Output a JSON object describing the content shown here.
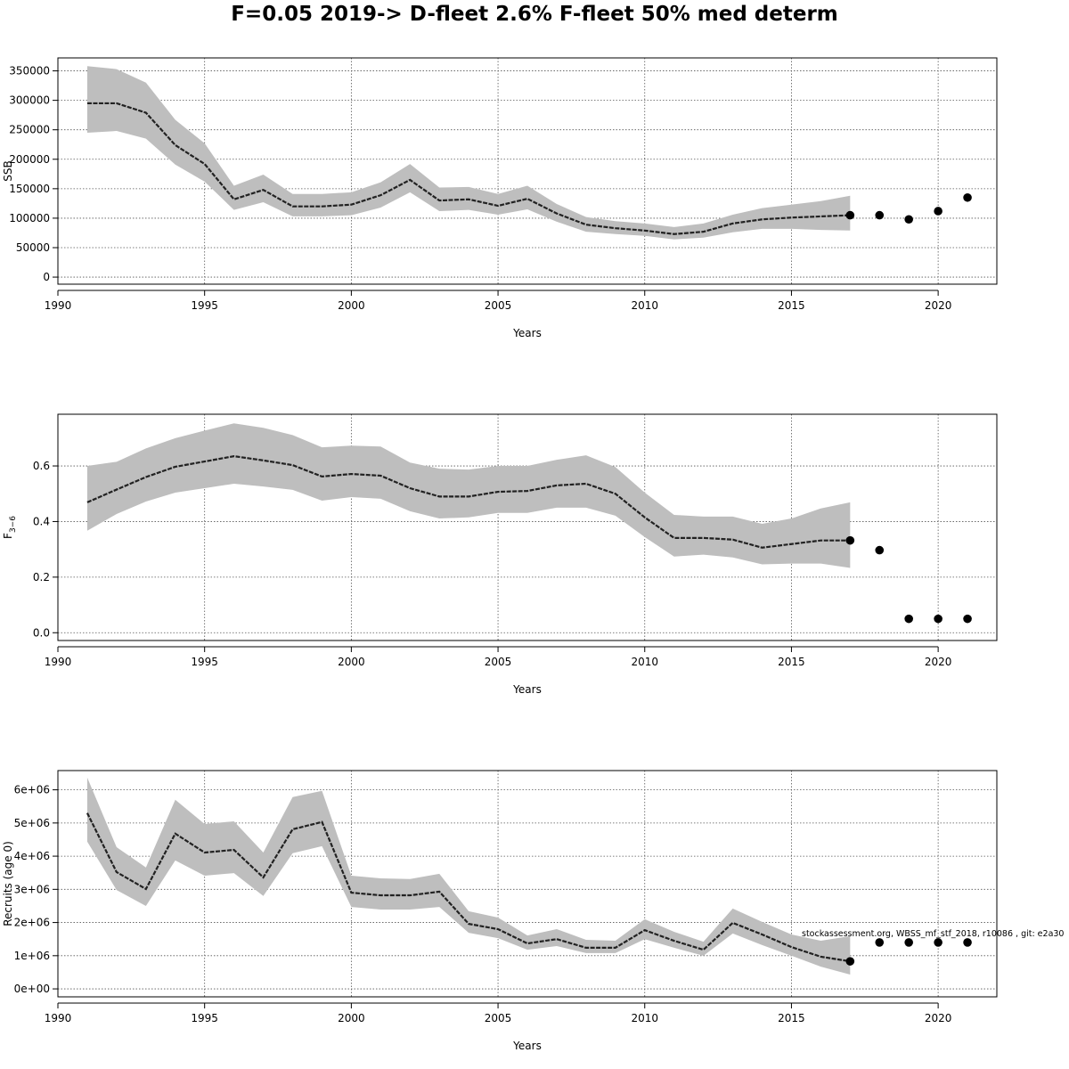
{
  "title": "F=0.05 2019-> D-fleet 2.6% F-fleet 50% med determ",
  "footnote": "stockassessment.org, WBSS_mf_stf_2018, r10086 , git: e2a30",
  "colors": {
    "band": "#bebebe",
    "line": "#222222",
    "points": "#000000",
    "grid": "#555555"
  },
  "chart_data": [
    {
      "type": "line",
      "ylabel": "SSB",
      "xlabel": "Years",
      "xlim": [
        1990,
        2022
      ],
      "ylim": [
        -12000,
        372000
      ],
      "x_ticks": [
        1990,
        1995,
        2000,
        2005,
        2010,
        2015,
        2020
      ],
      "x_tick_labels": [
        "1990",
        "1995",
        "2000",
        "2005",
        "2010",
        "2015",
        "2020"
      ],
      "y_ticks": [
        0,
        50000,
        100000,
        150000,
        200000,
        250000,
        300000,
        350000
      ],
      "y_tick_labels": [
        "0",
        "50000",
        "100000",
        "150000",
        "200000",
        "250000",
        "300000",
        "350000"
      ],
      "grid": true,
      "years": [
        1991,
        1992,
        1993,
        1994,
        1995,
        1996,
        1997,
        1998,
        1999,
        2000,
        2001,
        2002,
        2003,
        2004,
        2005,
        2006,
        2007,
        2008,
        2009,
        2010,
        2011,
        2012,
        2013,
        2014,
        2015,
        2016,
        2017
      ],
      "estimate": [
        295000,
        295000,
        279000,
        224000,
        192000,
        132000,
        148000,
        120000,
        120000,
        123000,
        139000,
        165000,
        130000,
        132000,
        121000,
        133000,
        108000,
        89000,
        83000,
        79000,
        73000,
        77000,
        91000,
        98000,
        101000,
        103000,
        105000
      ],
      "upper": [
        358000,
        353000,
        330000,
        267000,
        227000,
        155000,
        174000,
        141000,
        141000,
        144000,
        161000,
        192000,
        152000,
        153000,
        141000,
        155000,
        124000,
        102000,
        95000,
        91000,
        85000,
        91000,
        106000,
        117000,
        123000,
        129000,
        138000
      ],
      "lower": [
        245000,
        248000,
        235000,
        191000,
        162000,
        114000,
        127000,
        103000,
        103000,
        105000,
        118000,
        144000,
        112000,
        114000,
        106000,
        115000,
        94000,
        77000,
        73000,
        70000,
        64000,
        67000,
        76000,
        82000,
        82000,
        80000,
        79000
      ],
      "forecast": {
        "years": [
          2017,
          2018,
          2019,
          2020,
          2021
        ],
        "values": [
          105000,
          105000,
          98000,
          112000,
          135000
        ]
      }
    },
    {
      "type": "line",
      "ylabel": "F",
      "ylabel_sub": "3−6",
      "xlabel": "Years",
      "xlim": [
        1990,
        2022
      ],
      "ylim": [
        -0.028,
        0.786
      ],
      "x_ticks": [
        1990,
        1995,
        2000,
        2005,
        2010,
        2015,
        2020
      ],
      "x_tick_labels": [
        "1990",
        "1995",
        "2000",
        "2005",
        "2010",
        "2015",
        "2020"
      ],
      "y_ticks": [
        0,
        0.2,
        0.4,
        0.6
      ],
      "y_tick_labels": [
        "0.0",
        "0.2",
        "0.4",
        "0.6"
      ],
      "grid": true,
      "years": [
        1991,
        1992,
        1993,
        1994,
        1995,
        1996,
        1997,
        1998,
        1999,
        2000,
        2001,
        2002,
        2003,
        2004,
        2005,
        2006,
        2007,
        2008,
        2009,
        2010,
        2011,
        2012,
        2013,
        2014,
        2015,
        2016,
        2017
      ],
      "estimate": [
        0.469,
        0.515,
        0.56,
        0.597,
        0.616,
        0.635,
        0.62,
        0.603,
        0.562,
        0.571,
        0.565,
        0.52,
        0.49,
        0.49,
        0.507,
        0.51,
        0.53,
        0.536,
        0.5,
        0.415,
        0.341,
        0.341,
        0.335,
        0.306,
        0.319,
        0.332,
        0.332
      ],
      "upper": [
        0.6,
        0.615,
        0.663,
        0.7,
        0.727,
        0.753,
        0.737,
        0.711,
        0.667,
        0.673,
        0.67,
        0.612,
        0.59,
        0.587,
        0.6,
        0.6,
        0.622,
        0.638,
        0.596,
        0.504,
        0.424,
        0.418,
        0.418,
        0.392,
        0.411,
        0.447,
        0.469
      ],
      "lower": [
        0.367,
        0.427,
        0.472,
        0.504,
        0.52,
        0.536,
        0.526,
        0.514,
        0.475,
        0.488,
        0.482,
        0.437,
        0.411,
        0.415,
        0.431,
        0.431,
        0.45,
        0.45,
        0.421,
        0.344,
        0.274,
        0.281,
        0.271,
        0.246,
        0.249,
        0.249,
        0.233
      ],
      "forecast": {
        "years": [
          2017,
          2018,
          2019,
          2020,
          2021
        ],
        "values": [
          0.332,
          0.297,
          0.05,
          0.05,
          0.05
        ]
      }
    },
    {
      "type": "line",
      "ylabel": "Recruits (age 0)",
      "xlabel": "Years",
      "xlim": [
        1990,
        2022
      ],
      "ylim": [
        -240000,
        6580000
      ],
      "x_ticks": [
        1990,
        1995,
        2000,
        2005,
        2010,
        2015,
        2020
      ],
      "x_tick_labels": [
        "1990",
        "1995",
        "2000",
        "2005",
        "2010",
        "2015",
        "2020"
      ],
      "y_ticks": [
        0,
        1000000,
        2000000,
        3000000,
        4000000,
        5000000,
        6000000
      ],
      "y_tick_labels": [
        "0e+00",
        "1e+06",
        "2e+06",
        "3e+06",
        "4e+06",
        "5e+06",
        "6e+06"
      ],
      "grid": true,
      "years": [
        1991,
        1992,
        1993,
        1994,
        1995,
        1996,
        1997,
        1998,
        1999,
        2000,
        2001,
        2002,
        2003,
        2004,
        2005,
        2006,
        2007,
        2008,
        2009,
        2010,
        2011,
        2012,
        2013,
        2014,
        2015,
        2016,
        2017
      ],
      "estimate": [
        5300000,
        3520000,
        3010000,
        4680000,
        4110000,
        4190000,
        3360000,
        4810000,
        5030000,
        2900000,
        2820000,
        2820000,
        2930000,
        1960000,
        1800000,
        1370000,
        1500000,
        1240000,
        1240000,
        1770000,
        1450000,
        1180000,
        1990000,
        1640000,
        1260000,
        970000,
        830000
      ],
      "upper": [
        6370000,
        4270000,
        3660000,
        5700000,
        4970000,
        5050000,
        4110000,
        5780000,
        5970000,
        3410000,
        3330000,
        3310000,
        3470000,
        2340000,
        2150000,
        1610000,
        1800000,
        1480000,
        1450000,
        2100000,
        1720000,
        1420000,
        2420000,
        2020000,
        1640000,
        1450000,
        1590000
      ],
      "lower": [
        4440000,
        2980000,
        2500000,
        3870000,
        3410000,
        3490000,
        2800000,
        4090000,
        4300000,
        2470000,
        2390000,
        2390000,
        2470000,
        1690000,
        1530000,
        1180000,
        1290000,
        1080000,
        1080000,
        1500000,
        1240000,
        1000000,
        1670000,
        1320000,
        1000000,
        670000,
        430000
      ],
      "forecast": {
        "years": [
          2017,
          2018,
          2019,
          2020,
          2021
        ],
        "values": [
          830000,
          1400000,
          1400000,
          1400000,
          1400000
        ]
      }
    }
  ]
}
